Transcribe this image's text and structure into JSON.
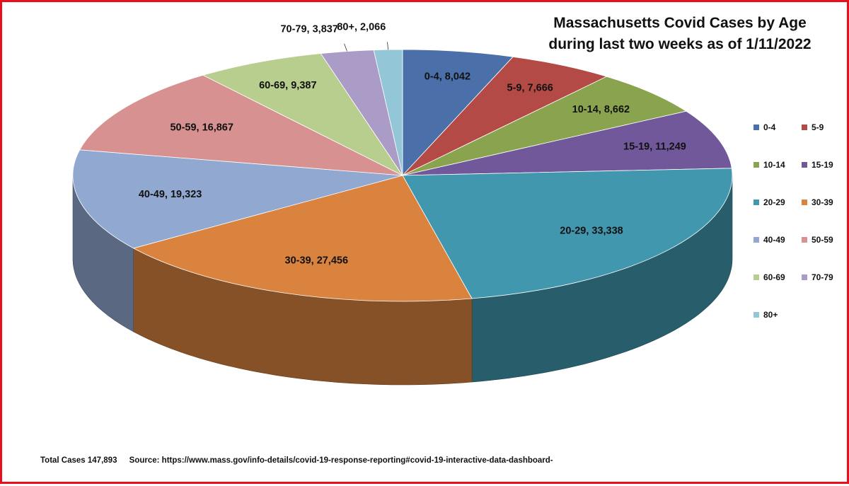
{
  "title_lines": [
    "Massachusetts Covid Cases by Age",
    "during last two weeks as of 1/11/2022"
  ],
  "footer": {
    "total": "Total Cases 147,893",
    "source": "Source:  https://www.mass.gov/info-details/covid-19-response-reporting#covid-19-interactive-data-dashboard-"
  },
  "chart_data": {
    "type": "pie",
    "style": "3d",
    "title": "Massachusetts Covid Cases by Age during last two weeks as of 1/11/2022",
    "start_angle": "12 o'clock, clockwise",
    "legend_position": "right",
    "categories": [
      "0-4",
      "5-9",
      "10-14",
      "15-19",
      "20-29",
      "30-39",
      "40-49",
      "50-59",
      "60-69",
      "70-79",
      "80+"
    ],
    "values": [
      8042,
      7666,
      8662,
      11249,
      33338,
      27456,
      19323,
      16867,
      9387,
      3837,
      2066
    ],
    "data_labels": [
      "0-4, 8,042",
      "5-9, 7,666",
      "10-14, 8,662",
      "15-19, 11,249",
      "20-29, 33,338",
      "30-39, 27,456",
      "40-49, 19,323",
      "50-59, 16,867",
      "60-69, 9,387",
      "70-79, 3,837",
      "80+, 2,066"
    ],
    "colors": [
      "#4a6fa9",
      "#b44a46",
      "#8aa34e",
      "#71589a",
      "#4197ae",
      "#d9833f",
      "#91a8d1",
      "#d69190",
      "#b7ce8f",
      "#ab9bc7",
      "#93c7d8"
    ]
  }
}
